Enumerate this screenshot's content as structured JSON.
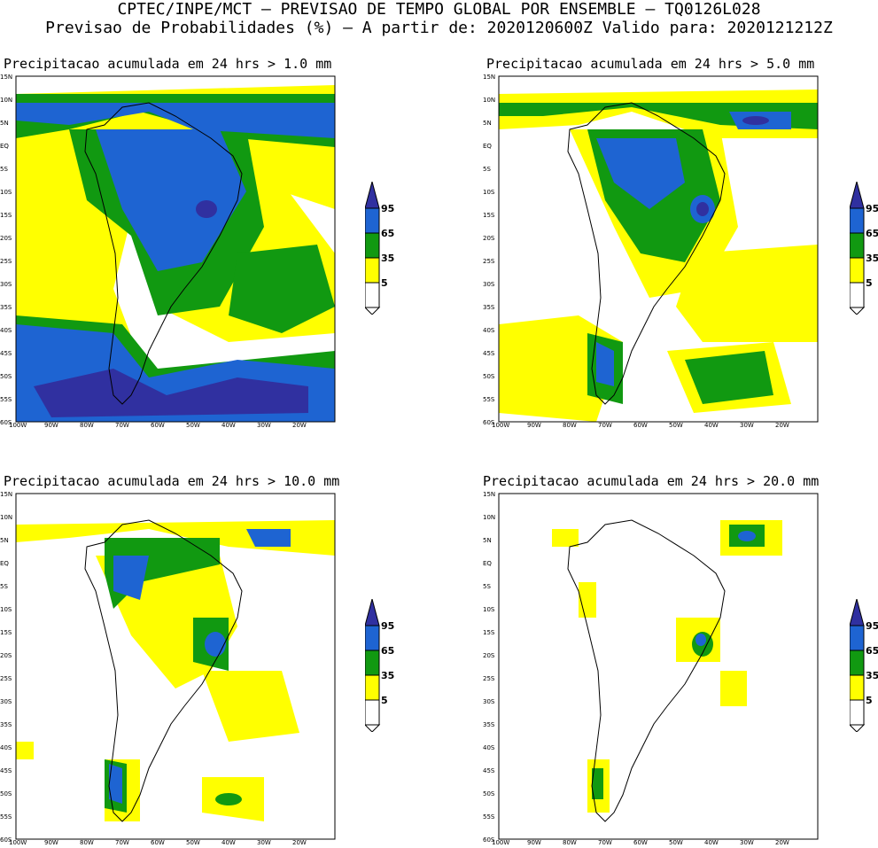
{
  "header": {
    "line1": "CPTEC/INPE/MCT – PREVISAO DE TEMPO GLOBAL POR ENSEMBLE – TQ0126L028",
    "line2": "Previsao de Probabilidades (%) –  A partir de: 2020120600Z  Valido para: 2020121212Z"
  },
  "panels": [
    {
      "title": "Precipitacao acumulada em 24 hrs > 1.0 mm"
    },
    {
      "title": "Precipitacao acumulada em 24 hrs > 5.0 mm"
    },
    {
      "title": "Precipitacao acumulada em 24 hrs > 10.0 mm"
    },
    {
      "title": "Precipitacao acumulada em 24 hrs > 20.0 mm"
    }
  ],
  "lat_labels": [
    "15N",
    "10N",
    "5N",
    "EQ",
    "5S",
    "10S",
    "15S",
    "20S",
    "25S",
    "30S",
    "35S",
    "40S",
    "45S",
    "50S",
    "55S",
    "60S"
  ],
  "lon_labels": [
    "100W",
    "90W",
    "80W",
    "70W",
    "60W",
    "50W",
    "40W",
    "30W",
    "20W"
  ],
  "legend": {
    "labels": [
      "95",
      "65",
      "35",
      "5"
    ],
    "colors": {
      "c95": "#3030a0",
      "c65": "#1e64d2",
      "c35": "#119911",
      "c5": "#ffff00",
      "c0": "#ffffff"
    }
  }
}
